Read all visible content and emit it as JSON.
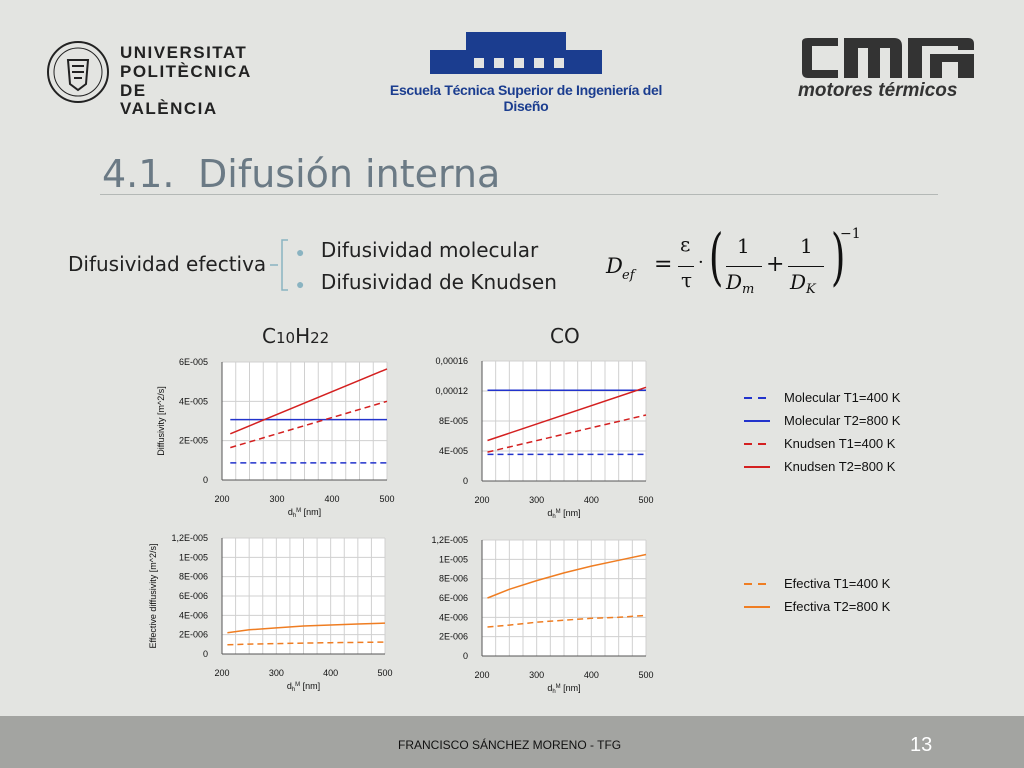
{
  "header": {
    "upv_line1": "UNIVERSITAT",
    "upv_line2": "POLITÈCNICA",
    "upv_line3": "DE VALÈNCIA",
    "etsid_name": "Escuela Técnica Superior de Ingeniería del Diseño",
    "cmt_sub": "motores térmicos"
  },
  "slide": {
    "number_label": "4.1.",
    "title": "Difusión interna",
    "left_label": "Difusividad efectiva",
    "bullets": [
      "Difusividad molecular",
      "Difusividad de Knudsen"
    ],
    "formula": {
      "lhs": "D",
      "lhs_sub": "ef",
      "eps": "ε",
      "tau": "τ",
      "one": "1",
      "dm": "D",
      "dm_sub": "m",
      "dk": "D",
      "dk_sub": "K",
      "exp": "−1"
    },
    "col_label_left_a": "C",
    "col_label_left_b": "10",
    "col_label_left_c": "H",
    "col_label_left_d": "22",
    "col_label_right": "CO"
  },
  "colors": {
    "blue": "#2233cc",
    "red": "#d42020",
    "orange": "#ef7d22"
  },
  "legend_top": [
    {
      "label": "Molecular  T1=400 K",
      "color": "#2233cc",
      "dashed": true
    },
    {
      "label": "Molecular  T2=800 K",
      "color": "#2233cc",
      "dashed": false
    },
    {
      "label": "Knudsen  T1=400 K",
      "color": "#d42020",
      "dashed": true
    },
    {
      "label": "Knudsen T2=800 K",
      "color": "#d42020",
      "dashed": false
    }
  ],
  "legend_bottom": [
    {
      "label": "Efectiva  T1=400 K",
      "color": "#ef7d22",
      "dashed": true
    },
    {
      "label": "Efectiva  T2=800 K",
      "color": "#ef7d22",
      "dashed": false
    }
  ],
  "chart_data": [
    {
      "type": "line",
      "ylabel": "Diffusivity [m^2/s]",
      "xlabel": "dhM [nm]",
      "xlim": [
        200,
        500
      ],
      "ylim": [
        0,
        6e-05
      ],
      "xticks": [
        "200",
        "300",
        "400",
        "500"
      ],
      "yticks": [
        "0",
        "2E-005",
        "4E-005",
        "6E-005"
      ],
      "series": [
        {
          "name": "Molecular  T1=400 K",
          "color": "#2233cc",
          "dashed": true,
          "x": [
            215,
            500
          ],
          "y": [
            8.7e-06,
            8.7e-06
          ]
        },
        {
          "name": "Molecular  T2=800 K",
          "color": "#2233cc",
          "dashed": false,
          "x": [
            215,
            500
          ],
          "y": [
            3.07e-05,
            3.07e-05
          ]
        },
        {
          "name": "Knudsen  T1=400 K",
          "color": "#d42020",
          "dashed": true,
          "x": [
            215,
            500
          ],
          "y": [
            1.65e-05,
            4e-05
          ]
        },
        {
          "name": "Knudsen T2=800 K",
          "color": "#d42020",
          "dashed": false,
          "x": [
            215,
            500
          ],
          "y": [
            2.35e-05,
            5.65e-05
          ]
        }
      ]
    },
    {
      "type": "line",
      "ylabel": "",
      "xlabel": "dhM [nm]",
      "xlim": [
        200,
        500
      ],
      "ylim": [
        0,
        0.00016
      ],
      "xticks": [
        "200",
        "300",
        "400",
        "500"
      ],
      "yticks": [
        "0",
        "4E-005",
        "8E-005",
        "0,00012",
        "0,00016"
      ],
      "series": [
        {
          "name": "Molecular  T1=400 K",
          "color": "#2233cc",
          "dashed": true,
          "x": [
            210,
            500
          ],
          "y": [
            3.55e-05,
            3.55e-05
          ]
        },
        {
          "name": "Molecular  T2=800 K",
          "color": "#2233cc",
          "dashed": false,
          "x": [
            210,
            500
          ],
          "y": [
            0.000121,
            0.000121
          ]
        },
        {
          "name": "Knudsen  T1=400 K",
          "color": "#d42020",
          "dashed": true,
          "x": [
            210,
            500
          ],
          "y": [
            3.85e-05,
            8.8e-05
          ]
        },
        {
          "name": "Knudsen T2=800 K",
          "color": "#d42020",
          "dashed": false,
          "x": [
            210,
            500
          ],
          "y": [
            5.4e-05,
            0.000125
          ]
        }
      ]
    },
    {
      "type": "line",
      "ylabel": "Effective diffusivity [m^2/s]",
      "xlabel": "dhM [nm]",
      "xlim": [
        200,
        500
      ],
      "ylim": [
        0,
        1.2e-05
      ],
      "xticks": [
        "200",
        "300",
        "400",
        "500"
      ],
      "yticks": [
        "0",
        "2E-006",
        "4E-006",
        "6E-006",
        "8E-006",
        "1E-005",
        "1,2E-005"
      ],
      "series": [
        {
          "name": "Efectiva  T1=400 K",
          "color": "#ef7d22",
          "dashed": true,
          "x": [
            210,
            250,
            300,
            350,
            400,
            450,
            500
          ],
          "y": [
            9.5e-07,
            1.02e-06,
            1.08e-06,
            1.13e-06,
            1.17e-06,
            1.2e-06,
            1.23e-06
          ]
        },
        {
          "name": "Efectiva  T2=800 K",
          "color": "#ef7d22",
          "dashed": false,
          "x": [
            210,
            250,
            300,
            350,
            400,
            450,
            500
          ],
          "y": [
            2.2e-06,
            2.5e-06,
            2.7e-06,
            2.9e-06,
            3e-06,
            3.1e-06,
            3.2e-06
          ]
        }
      ]
    },
    {
      "type": "line",
      "ylabel": "",
      "xlabel": "dhM [nm]",
      "xlim": [
        200,
        500
      ],
      "ylim": [
        0,
        1.2e-05
      ],
      "xticks": [
        "200",
        "300",
        "400",
        "500"
      ],
      "yticks": [
        "0",
        "2E-006",
        "4E-006",
        "6E-006",
        "8E-006",
        "1E-005",
        "1,2E-005"
      ],
      "series": [
        {
          "name": "Efectiva  T1=400 K",
          "color": "#ef7d22",
          "dashed": true,
          "x": [
            210,
            250,
            300,
            350,
            400,
            450,
            500
          ],
          "y": [
            3e-06,
            3.2e-06,
            3.5e-06,
            3.7e-06,
            3.9e-06,
            4e-06,
            4.2e-06
          ]
        },
        {
          "name": "Efectiva  T2=800 K",
          "color": "#ef7d22",
          "dashed": false,
          "x": [
            210,
            250,
            300,
            350,
            400,
            450,
            500
          ],
          "y": [
            6e-06,
            6.9e-06,
            7.8e-06,
            8.6e-06,
            9.3e-06,
            9.9e-06,
            1.05e-05
          ]
        }
      ]
    }
  ],
  "footer": {
    "author": "FRANCISCO SÁNCHEZ MORENO - TFG",
    "page": "13"
  }
}
